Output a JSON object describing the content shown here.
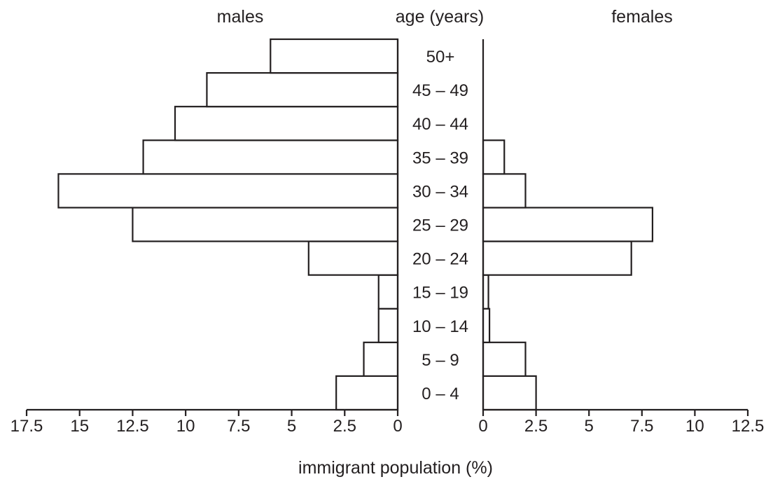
{
  "chart_data": {
    "type": "bar",
    "orientation": "horizontal",
    "layout": "population-pyramid",
    "left_header": "males",
    "center_header": "age (years)",
    "right_header": "females",
    "xlabel": "immigrant population (%)",
    "categories": [
      "0–4",
      "5–9",
      "10–14",
      "15–19",
      "20–24",
      "25–29",
      "30–34",
      "35–39",
      "40–44",
      "45–49",
      "50+"
    ],
    "category_labels": [
      "0 – 4",
      "5 – 9",
      "10 – 14",
      "15 – 19",
      "20 – 24",
      "25 – 29",
      "30 – 34",
      "35 – 39",
      "40 – 44",
      "45 – 49",
      "50+"
    ],
    "series": [
      {
        "name": "males",
        "values": [
          2.9,
          1.6,
          0.9,
          0.9,
          4.2,
          12.5,
          16.0,
          12.0,
          10.5,
          9.0,
          6.0
        ]
      },
      {
        "name": "females",
        "values": [
          2.5,
          2.0,
          0.3,
          0.25,
          7.0,
          8.0,
          2.0,
          1.0,
          0.0,
          0.0,
          0.0
        ]
      }
    ],
    "males_xlim": [
      0,
      17.5
    ],
    "females_xlim": [
      0,
      12.5
    ],
    "males_ticks": [
      "17.5",
      "15",
      "12.5",
      "10",
      "7.5",
      "5",
      "2.5",
      "0"
    ],
    "females_ticks": [
      "0",
      "2.5",
      "5",
      "7.5",
      "10",
      "12.5"
    ],
    "grid": false,
    "legend": "none"
  }
}
